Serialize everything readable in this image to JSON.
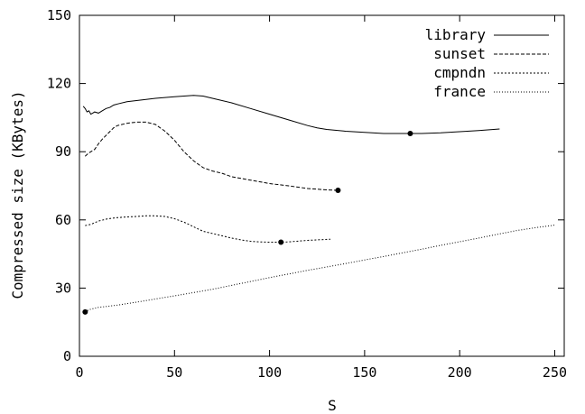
{
  "chart_data": {
    "type": "line",
    "xlabel": "S",
    "ylabel": "Compressed size (KBytes)",
    "xlim": [
      0,
      255
    ],
    "ylim": [
      0,
      150
    ],
    "xticks": [
      0,
      50,
      100,
      150,
      200,
      250
    ],
    "yticks": [
      0,
      30,
      60,
      90,
      120,
      150
    ],
    "grid": false,
    "legend_position": "top-right",
    "series": [
      {
        "name": "library",
        "dash": "solid",
        "x": [
          2,
          3,
          4,
          5,
          6,
          7,
          8,
          10,
          12,
          14,
          16,
          18,
          20,
          25,
          30,
          40,
          50,
          60,
          65,
          70,
          80,
          90,
          100,
          110,
          120,
          125,
          130,
          140,
          150,
          160,
          170,
          174,
          180,
          190,
          200,
          210,
          221
        ],
        "y": [
          110,
          109,
          107.5,
          108,
          106.5,
          107,
          107.5,
          107,
          108,
          109,
          109.5,
          110.5,
          111,
          112,
          112.5,
          113.5,
          114.2,
          114.8,
          114.5,
          113.5,
          111.5,
          109,
          106.5,
          104,
          101.5,
          100.5,
          99.8,
          99,
          98.5,
          98,
          98,
          98,
          98,
          98.3,
          98.8,
          99.3,
          100
        ],
        "marker": {
          "x": 174,
          "y": 98
        }
      },
      {
        "name": "sunset",
        "dash": "dashed",
        "x": [
          3,
          5,
          8,
          10,
          12,
          15,
          18,
          20,
          25,
          30,
          35,
          40,
          45,
          50,
          55,
          60,
          65,
          70,
          75,
          80,
          90,
          100,
          110,
          120,
          130,
          136
        ],
        "y": [
          88,
          89.5,
          91,
          93.5,
          95.5,
          98,
          100.5,
          101.5,
          102.5,
          103,
          103,
          102,
          99,
          95,
          90,
          86,
          83,
          81.5,
          80.5,
          79,
          77.5,
          76,
          75,
          73.8,
          73.2,
          73
        ],
        "marker": {
          "x": 136,
          "y": 73
        }
      },
      {
        "name": "cmpndn",
        "dash": "dotted-dense",
        "x": [
          3,
          6,
          10,
          15,
          20,
          25,
          30,
          35,
          40,
          45,
          50,
          55,
          60,
          65,
          70,
          75,
          80,
          85,
          90,
          95,
          100,
          106,
          110,
          120,
          132
        ],
        "y": [
          57.5,
          58,
          59.5,
          60.5,
          61,
          61.3,
          61.5,
          61.8,
          61.8,
          61.5,
          60.5,
          59,
          57,
          55,
          54,
          53,
          52,
          51.2,
          50.6,
          50.3,
          50.2,
          50.2,
          50.3,
          51,
          51.5
        ],
        "marker": {
          "x": 106,
          "y": 50.2
        }
      },
      {
        "name": "france",
        "dash": "dotted",
        "x": [
          3,
          5,
          10,
          20,
          30,
          40,
          50,
          60,
          70,
          80,
          90,
          100,
          110,
          120,
          130,
          140,
          150,
          160,
          170,
          180,
          190,
          200,
          210,
          220,
          230,
          240,
          250
        ],
        "y": [
          19.5,
          20.5,
          21.5,
          22.5,
          23.8,
          25.2,
          26.6,
          28,
          29.5,
          31.2,
          32.9,
          34.6,
          36.2,
          37.8,
          39.3,
          40.8,
          42.4,
          43.9,
          45.5,
          47.1,
          48.8,
          50.4,
          52,
          53.7,
          55.3,
          56.6,
          57.7
        ],
        "marker": {
          "x": 3,
          "y": 19.5
        }
      }
    ]
  }
}
